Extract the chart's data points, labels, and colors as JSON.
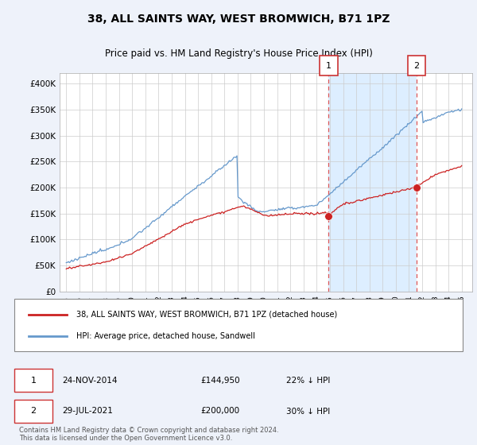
{
  "title": "38, ALL SAINTS WAY, WEST BROMWICH, B71 1PZ",
  "subtitle": "Price paid vs. HM Land Registry's House Price Index (HPI)",
  "ytick_values": [
    0,
    50000,
    100000,
    150000,
    200000,
    250000,
    300000,
    350000,
    400000
  ],
  "ylim": [
    0,
    420000
  ],
  "xlim_left": 1994.5,
  "xlim_right": 2025.8,
  "hpi_color": "#6699cc",
  "price_color": "#cc2222",
  "dashed_color": "#dd5555",
  "shaded_color": "#ddeeff",
  "hatch_color": "#cccccc",
  "marker1_x": 2014.9,
  "marker1_y": 144950,
  "marker2_x": 2021.58,
  "marker2_y": 200000,
  "annotation1_date": "24-NOV-2014",
  "annotation1_price": "£144,950",
  "annotation1_pct": "22% ↓ HPI",
  "annotation2_date": "29-JUL-2021",
  "annotation2_price": "£200,000",
  "annotation2_pct": "30% ↓ HPI",
  "legend_label1": "38, ALL SAINTS WAY, WEST BROMWICH, B71 1PZ (detached house)",
  "legend_label2": "HPI: Average price, detached house, Sandwell",
  "footnote": "Contains HM Land Registry data © Crown copyright and database right 2024.\nThis data is licensed under the Open Government Licence v3.0.",
  "bg_color": "#eef2fa",
  "plot_bg": "#ffffff"
}
